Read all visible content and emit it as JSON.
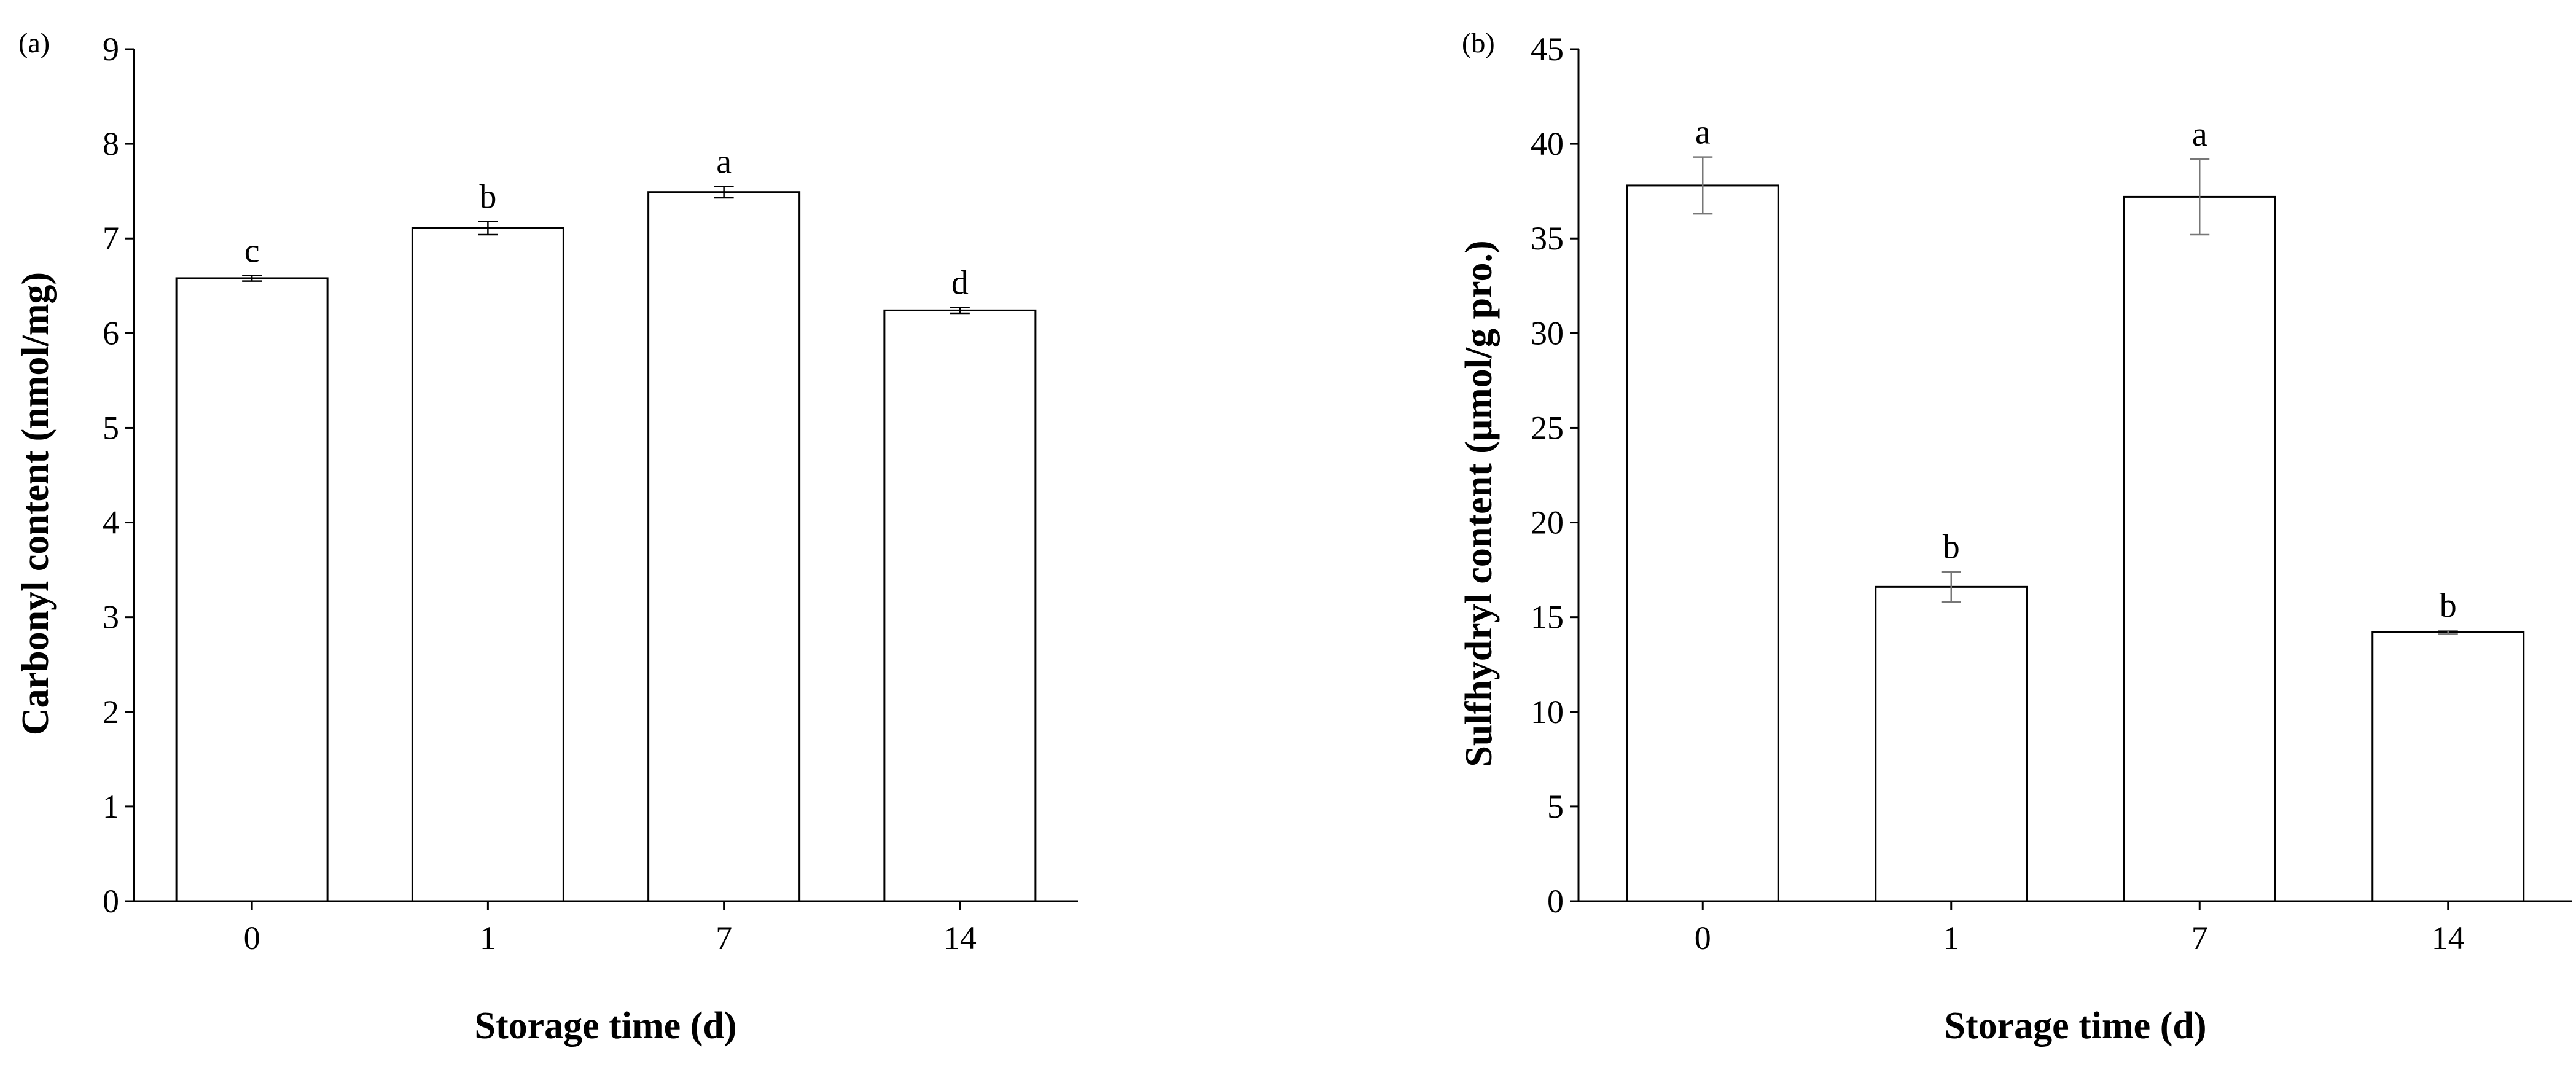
{
  "chart_data": [
    {
      "type": "bar",
      "panel_label": "(a)",
      "categories": [
        "0",
        "1",
        "7",
        "14"
      ],
      "values": [
        6.58,
        7.11,
        7.49,
        6.24
      ],
      "errors": [
        0.03,
        0.07,
        0.06,
        0.03
      ],
      "significance": [
        "c",
        "b",
        "a",
        "d"
      ],
      "xlabel": "Storage time (d)",
      "ylabel": "Carbonyl content (nmol/mg)",
      "ylim": [
        0,
        9
      ],
      "yticks": [
        0,
        1,
        2,
        3,
        4,
        5,
        6,
        7,
        8,
        9
      ],
      "grid": false
    },
    {
      "type": "bar",
      "panel_label": "(b)",
      "categories": [
        "0",
        "1",
        "7",
        "14"
      ],
      "values": [
        37.8,
        16.6,
        37.2,
        14.2
      ],
      "errors": [
        1.5,
        0.8,
        2.0,
        0.1
      ],
      "significance": [
        "a",
        "b",
        "a",
        "b"
      ],
      "xlabel": "Storage time (d)",
      "ylabel": "Sulfhydryl content (μmol/g pro.)",
      "ylim": [
        0,
        45
      ],
      "yticks": [
        0,
        5,
        10,
        15,
        20,
        25,
        30,
        35,
        40,
        45
      ],
      "grid": false
    }
  ]
}
